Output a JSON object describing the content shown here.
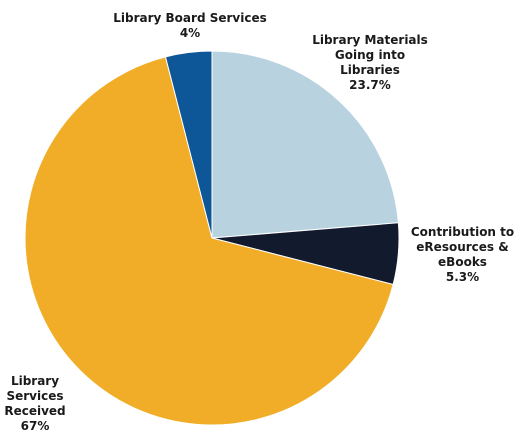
{
  "chart_data": {
    "type": "pie",
    "slices": [
      {
        "label_lines": [
          "Library Materials",
          "Going into",
          "Libraries"
        ],
        "pct_text": "23.7%",
        "value": 23.7,
        "color": "#b8d3df"
      },
      {
        "label_lines": [
          "Contribution to",
          "eResources &",
          "eBooks"
        ],
        "pct_text": "5.3%",
        "value": 5.3,
        "color": "#121a2e"
      },
      {
        "label_lines": [
          "Library",
          "Services",
          "Received"
        ],
        "pct_text": "67%",
        "value": 67,
        "color": "#f1ad27"
      },
      {
        "label_lines": [
          "Library Board Services"
        ],
        "pct_text": "4%",
        "value": 4,
        "color": "#0d5799"
      }
    ],
    "start": "12 o'clock",
    "direction": "clockwise",
    "legend": "none"
  }
}
